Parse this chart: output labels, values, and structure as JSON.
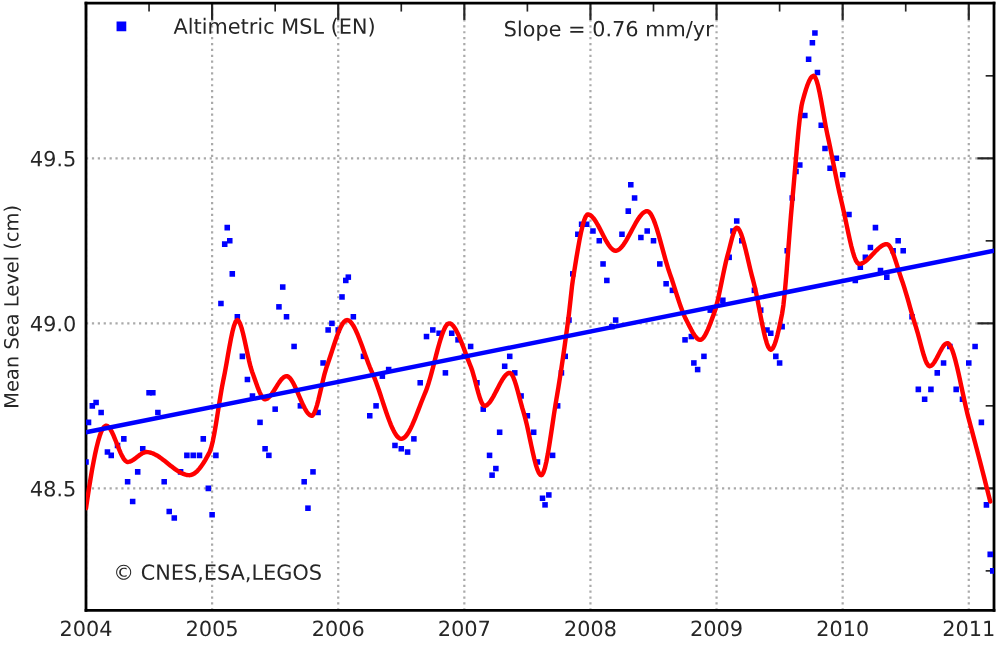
{
  "chart_data": {
    "type": "scatter",
    "ylabel": "Mean Sea Level (cm)",
    "xlim": [
      2004,
      2011.2
    ],
    "ylim": [
      48.13,
      49.97
    ],
    "xticks": [
      2004,
      2005,
      2006,
      2007,
      2008,
      2009,
      2010,
      2011,
      {
        "value": 2004.5,
        "label": null
      },
      {
        "value": 2005.5,
        "label": null
      },
      {
        "value": 2006.5,
        "label": null
      },
      {
        "value": 2007.5,
        "label": null
      },
      {
        "value": 2008.5,
        "label": null
      },
      {
        "value": 2009.5,
        "label": null
      },
      {
        "value": 2010.5,
        "label": null
      }
    ],
    "yticks": [
      {
        "value": 48.5,
        "label": "48.5"
      },
      {
        "value": 49.0,
        "label": "49.0"
      },
      {
        "value": 49.5,
        "label": "49.5"
      },
      {
        "value": 48.25,
        "label": null
      },
      {
        "value": 48.75,
        "label": null
      },
      {
        "value": 49.25,
        "label": null
      },
      {
        "value": 49.75,
        "label": null
      }
    ],
    "grid": true,
    "legend": "top left",
    "annotations": [
      "Slope = 0.76 mm/yr",
      "© CNES,ESA,LEGOS"
    ],
    "series": [
      {
        "name": "Altimetric MSL (EN)",
        "marker": "square",
        "color": "#0000ff",
        "x": [
          2004.0,
          2004.02,
          2004.05,
          2004.08,
          2004.12,
          2004.17,
          2004.2,
          2004.25,
          2004.3,
          2004.33,
          2004.37,
          2004.41,
          2004.45,
          2004.5,
          2004.53,
          2004.57,
          2004.62,
          2004.66,
          2004.7,
          2004.75,
          2004.8,
          2004.85,
          2004.9,
          2004.93,
          2004.97,
          2005.0,
          2005.03,
          2005.07,
          2005.1,
          2005.12,
          2005.14,
          2005.16,
          2005.2,
          2005.24,
          2005.28,
          2005.32,
          2005.38,
          2005.42,
          2005.45,
          2005.5,
          2005.53,
          2005.56,
          2005.59,
          2005.65,
          2005.7,
          2005.73,
          2005.76,
          2005.8,
          2005.84,
          2005.88,
          2005.92,
          2005.95,
          2006.0,
          2006.03,
          2006.06,
          2006.08,
          2006.12,
          2006.2,
          2006.25,
          2006.3,
          2006.35,
          2006.4,
          2006.45,
          2006.5,
          2006.55,
          2006.6,
          2006.65,
          2006.7,
          2006.75,
          2006.8,
          2006.85,
          2006.9,
          2006.95,
          2007.0,
          2007.05,
          2007.1,
          2007.15,
          2007.2,
          2007.22,
          2007.25,
          2007.28,
          2007.32,
          2007.36,
          2007.4,
          2007.45,
          2007.5,
          2007.55,
          2007.58,
          2007.62,
          2007.64,
          2007.67,
          2007.7,
          2007.74,
          2007.77,
          2007.8,
          2007.83,
          2007.86,
          2007.9,
          2007.93,
          2007.97,
          2008.02,
          2008.07,
          2008.1,
          2008.13,
          2008.17,
          2008.2,
          2008.25,
          2008.3,
          2008.32,
          2008.35,
          2008.4,
          2008.45,
          2008.5,
          2008.55,
          2008.6,
          2008.65,
          2008.75,
          2008.8,
          2008.82,
          2008.85,
          2008.9,
          2008.95,
          2009.05,
          2009.1,
          2009.13,
          2009.16,
          2009.2,
          2009.3,
          2009.35,
          2009.4,
          2009.43,
          2009.47,
          2009.5,
          2009.52,
          2009.56,
          2009.6,
          2009.63,
          2009.66,
          2009.7,
          2009.73,
          2009.76,
          2009.78,
          2009.8,
          2009.83,
          2009.86,
          2009.9,
          2009.95,
          2010.0,
          2010.05,
          2010.1,
          2010.14,
          2010.18,
          2010.22,
          2010.26,
          2010.3,
          2010.35,
          2010.4,
          2010.44,
          2010.48,
          2010.55,
          2010.6,
          2010.65,
          2010.7,
          2010.75,
          2010.8,
          2010.85,
          2010.9,
          2010.95,
          2011.0,
          2011.05,
          2011.1,
          2011.14,
          2011.17,
          2011.19
        ],
        "values": [
          48.58,
          48.7,
          48.75,
          48.76,
          48.73,
          48.61,
          48.6,
          48.63,
          48.65,
          48.52,
          48.46,
          48.55,
          48.62,
          48.79,
          48.79,
          48.73,
          48.52,
          48.43,
          48.41,
          48.55,
          48.6,
          48.6,
          48.6,
          48.65,
          48.5,
          48.42,
          48.6,
          49.06,
          49.24,
          49.29,
          49.25,
          49.15,
          49.02,
          48.9,
          48.83,
          48.78,
          48.7,
          48.62,
          48.6,
          48.74,
          49.05,
          49.11,
          49.02,
          48.93,
          48.75,
          48.52,
          48.44,
          48.55,
          48.73,
          48.88,
          48.98,
          49.0,
          48.98,
          49.08,
          49.13,
          49.14,
          49.02,
          48.9,
          48.72,
          48.75,
          48.84,
          48.86,
          48.63,
          48.62,
          48.61,
          48.65,
          48.82,
          48.96,
          48.98,
          48.97,
          48.85,
          48.97,
          48.95,
          48.9,
          48.93,
          48.82,
          48.74,
          48.6,
          48.54,
          48.56,
          48.67,
          48.87,
          48.9,
          48.85,
          48.78,
          48.72,
          48.67,
          48.58,
          48.47,
          48.45,
          48.48,
          48.6,
          48.75,
          48.85,
          48.9,
          49.01,
          49.15,
          49.27,
          49.3,
          49.3,
          49.28,
          49.25,
          49.18,
          49.13,
          48.99,
          49.01,
          49.27,
          49.34,
          49.42,
          49.38,
          49.26,
          49.28,
          49.25,
          49.18,
          49.12,
          49.1,
          48.95,
          48.96,
          48.88,
          48.86,
          48.9,
          49.04,
          49.07,
          49.2,
          49.28,
          49.31,
          49.25,
          49.1,
          49.04,
          48.98,
          48.97,
          48.9,
          48.88,
          48.99,
          49.22,
          49.38,
          49.46,
          49.48,
          49.63,
          49.8,
          49.85,
          49.88,
          49.76,
          49.6,
          49.53,
          49.47,
          49.5,
          49.45,
          49.33,
          49.13,
          49.17,
          49.2,
          49.23,
          49.29,
          49.16,
          49.14,
          49.22,
          49.25,
          49.22,
          49.02,
          48.8,
          48.77,
          48.8,
          48.85,
          48.88,
          48.93,
          48.8,
          48.77,
          48.88,
          48.93,
          48.7,
          48.45,
          48.3,
          48.25
        ]
      },
      {
        "type": "line",
        "marker": "none",
        "color": "#ff0000",
        "x": [
          2004.0,
          2004.16,
          2004.33,
          2004.48,
          2004.82,
          2004.98,
          2005.09,
          2005.2,
          2005.32,
          2005.42,
          2005.59,
          2005.79,
          2005.91,
          2006.07,
          2006.27,
          2006.5,
          2006.69,
          2006.88,
          2007.05,
          2007.16,
          2007.36,
          2007.47,
          2007.61,
          2007.73,
          2007.83,
          2007.86,
          2007.98,
          2008.2,
          2008.45,
          2008.63,
          2008.76,
          2008.87,
          2008.98,
          2009.09,
          2009.16,
          2009.29,
          2009.43,
          2009.52,
          2009.6,
          2009.68,
          2009.77,
          2009.88,
          2009.99,
          2010.13,
          2010.35,
          2010.47,
          2010.58,
          2010.69,
          2010.83,
          2011.0,
          2011.17
        ],
        "values": [
          48.44,
          48.69,
          48.58,
          48.61,
          48.54,
          48.61,
          48.83,
          49.01,
          48.85,
          48.77,
          48.84,
          48.72,
          48.87,
          49.01,
          48.85,
          48.65,
          48.79,
          49.0,
          48.87,
          48.75,
          48.85,
          48.73,
          48.54,
          48.77,
          49.03,
          49.13,
          49.33,
          49.22,
          49.34,
          49.15,
          49.01,
          48.95,
          49.03,
          49.21,
          49.29,
          49.13,
          48.92,
          49.03,
          49.37,
          49.67,
          49.75,
          49.57,
          49.37,
          49.18,
          49.24,
          49.13,
          48.99,
          48.87,
          48.94,
          48.71,
          48.46
        ]
      },
      {
        "type": "line",
        "marker": "none",
        "color": "#0000ff",
        "x": [
          2004.0,
          2011.2
        ],
        "values": [
          48.67,
          49.22
        ]
      }
    ]
  }
}
